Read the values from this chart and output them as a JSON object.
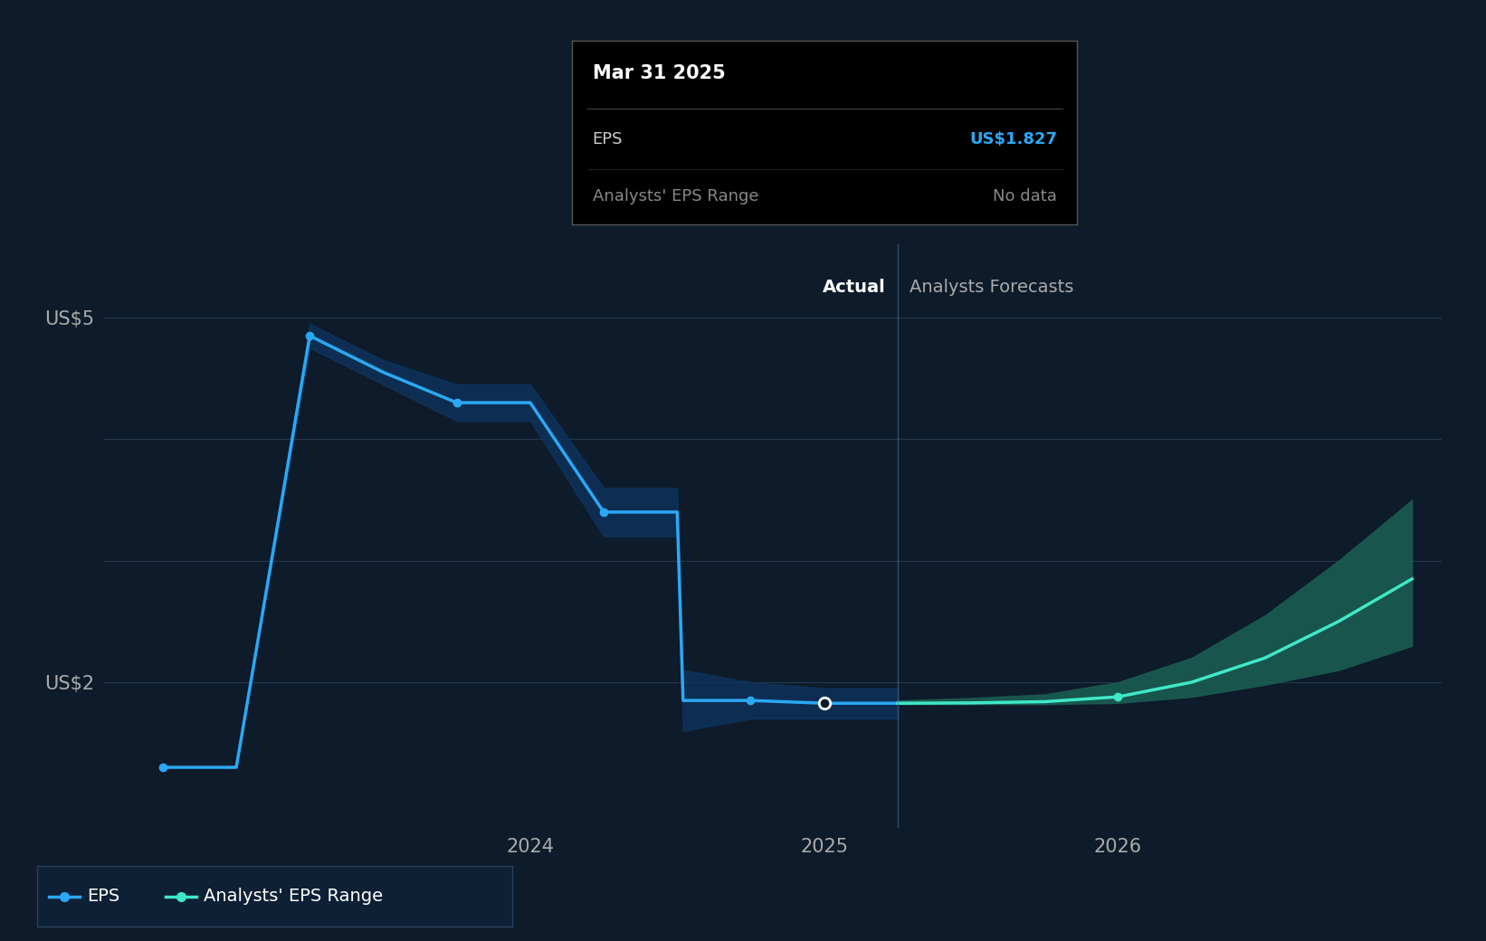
{
  "bg_color": "#0d1b2a",
  "plot_bg_color": "#0d1b2a",
  "grid_color": "#253850",
  "ylabel_us5": "US$5",
  "ylabel_us2": "US$2",
  "x_ticks": [
    "2024",
    "2025",
    "2026"
  ],
  "actual_label": "Actual",
  "forecast_label": "Analysts Forecasts",
  "eps_line_color": "#2ba8f5",
  "forecast_line_color": "#40e8c8",
  "forecast_band_color": "#1a5c50",
  "eps_band_color": "#0d3560",
  "divider_color": "#4a6fa5",
  "tooltip_bg": "#000000",
  "tooltip_border": "#555555",
  "tooltip_title": "Mar 31 2025",
  "tooltip_eps_label": "EPS",
  "tooltip_eps_value": "US$1.827",
  "tooltip_range_label": "Analysts' EPS Range",
  "tooltip_range_value": "No data",
  "tooltip_eps_color": "#2ba8f5",
  "tooltip_range_color": "#888888",
  "legend_eps": "EPS",
  "legend_range": "Analysts' EPS Range",
  "eps_x": [
    2022.75,
    2023.0,
    2023.25,
    2023.5,
    2023.75,
    2024.0,
    2024.25,
    2024.5,
    2024.52,
    2024.75,
    2025.0,
    2025.25
  ],
  "eps_y": [
    1.3,
    1.3,
    4.85,
    4.55,
    4.3,
    4.3,
    3.4,
    3.4,
    1.85,
    1.85,
    1.827,
    1.827
  ],
  "eps_markers_x": [
    2022.75,
    2023.25,
    2023.75,
    2024.25,
    2024.75,
    2025.0
  ],
  "eps_markers_y": [
    1.3,
    4.85,
    4.3,
    3.4,
    1.85,
    1.827
  ],
  "eps_band_upper_x": [
    2022.75,
    2023.0,
    2023.25,
    2023.5,
    2023.75,
    2024.0,
    2024.25,
    2024.5,
    2024.52,
    2024.75,
    2025.0,
    2025.25
  ],
  "eps_band_upper_y": [
    1.3,
    1.3,
    4.95,
    4.65,
    4.45,
    4.45,
    3.6,
    3.6,
    2.1,
    2.0,
    1.95,
    1.95
  ],
  "eps_band_lower_y": [
    1.3,
    1.3,
    4.75,
    4.45,
    4.15,
    4.15,
    3.2,
    3.2,
    1.6,
    1.7,
    1.7,
    1.7
  ],
  "forecast_x": [
    2025.25,
    2025.5,
    2025.75,
    2026.0,
    2026.25,
    2026.5,
    2026.75,
    2027.0
  ],
  "forecast_y": [
    1.827,
    1.83,
    1.84,
    1.88,
    2.0,
    2.2,
    2.5,
    2.85
  ],
  "forecast_markers_x": [
    2026.0
  ],
  "forecast_markers_y": [
    1.88
  ],
  "forecast_upper_x": [
    2025.25,
    2025.5,
    2025.75,
    2026.0,
    2026.25,
    2026.5,
    2026.75,
    2027.0
  ],
  "forecast_upper_y": [
    1.85,
    1.87,
    1.9,
    2.0,
    2.2,
    2.55,
    3.0,
    3.5
  ],
  "forecast_lower_y": [
    1.82,
    1.82,
    1.82,
    1.83,
    1.88,
    1.98,
    2.1,
    2.3
  ],
  "divider_x": 2025.25,
  "ylim_min": 0.8,
  "ylim_max": 5.6,
  "xlim_min": 2022.55,
  "xlim_max": 2027.1
}
